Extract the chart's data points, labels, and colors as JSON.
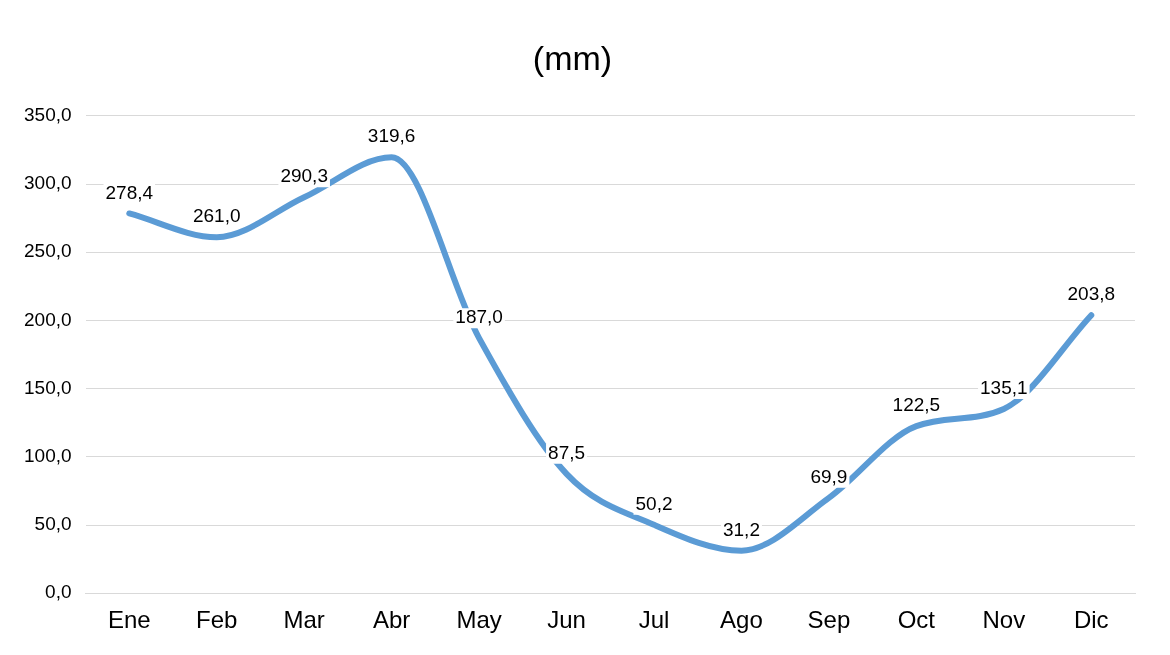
{
  "chart_data": {
    "type": "line",
    "title": "(mm)",
    "categories": [
      "Ene",
      "Feb",
      "Mar",
      "Abr",
      "May",
      "Jun",
      "Jul",
      "Ago",
      "Sep",
      "Oct",
      "Nov",
      "Dic"
    ],
    "series": [
      {
        "color": "#5b9bd5",
        "values": [
          278.4,
          261.0,
          290.3,
          319.6,
          187.0,
          87.5,
          50.2,
          31.2,
          69.9,
          122.5,
          135.1,
          203.8
        ],
        "value_labels": [
          "278,4",
          "261,0",
          "290,3",
          "319,6",
          "187,0",
          "87,5",
          "50,2",
          "31,2",
          "69,9",
          "122,5",
          "135,1",
          "203,8"
        ]
      }
    ],
    "ylim": [
      0,
      350
    ],
    "yticks": [
      {
        "value": 0,
        "label": "0,0"
      },
      {
        "value": 50,
        "label": "50,0"
      },
      {
        "value": 100,
        "label": "100,0"
      },
      {
        "value": 150,
        "label": "150,0"
      },
      {
        "value": 200,
        "label": "200,0"
      },
      {
        "value": 250,
        "label": "250,0"
      },
      {
        "value": 300,
        "label": "300,0"
      },
      {
        "value": 350,
        "label": "350,0"
      }
    ],
    "grid": "y",
    "legend": false,
    "line_style": "solid"
  }
}
